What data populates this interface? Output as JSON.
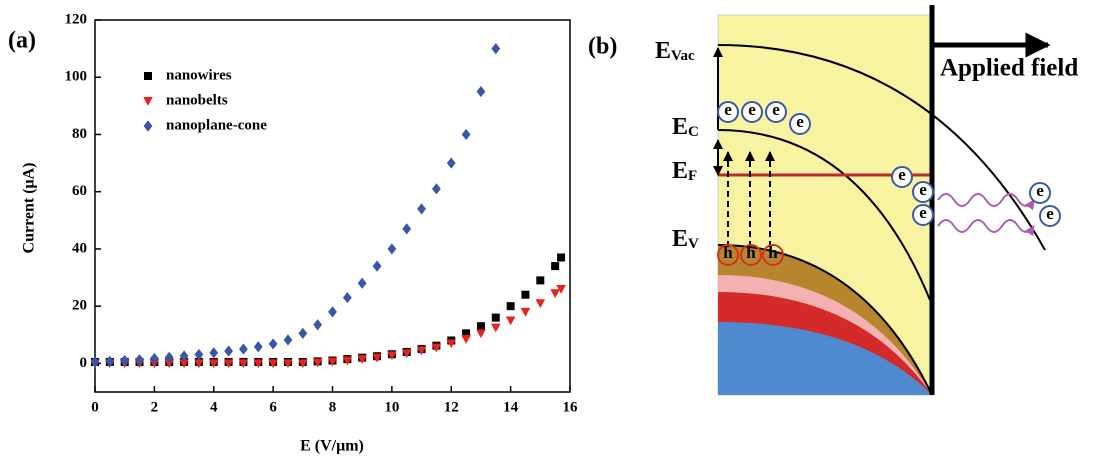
{
  "chart_data": {
    "type": "scatter",
    "panel_label": "(a)",
    "x_label": "E (V/μm)",
    "y_label": "Current (μA)",
    "xlim": [
      0,
      16
    ],
    "ylim": [
      -10,
      120
    ],
    "xticks": [
      0,
      2,
      4,
      6,
      8,
      10,
      12,
      14,
      16
    ],
    "yticks": [
      0,
      20,
      40,
      60,
      80,
      100,
      120
    ],
    "grid": false,
    "legend": "upper left",
    "series": [
      {
        "name": "nanowires",
        "color": "#000000",
        "marker": "square",
        "x": [
          0,
          0.5,
          1,
          1.5,
          2,
          2.5,
          3,
          3.5,
          4,
          4.5,
          5,
          5.5,
          6,
          6.5,
          7,
          7.5,
          8,
          8.5,
          9,
          9.5,
          10,
          10.5,
          11,
          11.5,
          12,
          12.5,
          13,
          13.5,
          14,
          14.5,
          15,
          15.5,
          15.7
        ],
        "values": [
          0.5,
          0.5,
          0.5,
          0.5,
          0.5,
          0.5,
          0.5,
          0.5,
          0.5,
          0.5,
          0.5,
          0.5,
          0.5,
          0.5,
          0.5,
          0.7,
          1,
          1.5,
          2,
          2.5,
          3.2,
          4,
          5,
          6.2,
          8,
          10.5,
          13,
          16,
          20,
          24,
          29,
          34,
          37
        ]
      },
      {
        "name": "nanobelts",
        "color": "#e8231f",
        "marker": "triangle-down",
        "x": [
          0,
          0.5,
          1,
          1.5,
          2,
          2.5,
          3,
          3.5,
          4,
          4.5,
          5,
          5.5,
          6,
          6.5,
          7,
          7.5,
          8,
          8.5,
          9,
          9.5,
          10,
          10.5,
          11,
          11.5,
          12,
          12.5,
          13,
          13.5,
          14,
          14.5,
          15,
          15.5,
          15.7
        ],
        "values": [
          0,
          0,
          0,
          0,
          0,
          0,
          0,
          0,
          0,
          0,
          0,
          0,
          0,
          0,
          0,
          0.3,
          0.6,
          1,
          1.5,
          2,
          2.8,
          3.5,
          4.5,
          5.5,
          7,
          8.5,
          10.5,
          12.5,
          15,
          18,
          21,
          24.5,
          26
        ]
      },
      {
        "name": "nanoplane-cone",
        "color": "#3856a8",
        "marker": "diamond",
        "x": [
          0,
          0.5,
          1,
          1.5,
          2,
          2.5,
          3,
          3.5,
          4,
          4.5,
          5,
          5.5,
          6,
          6.5,
          7,
          7.5,
          8,
          8.5,
          9,
          9.5,
          10,
          10.5,
          11,
          11.5,
          12,
          12.5,
          13,
          13.5
        ],
        "values": [
          0.5,
          0.7,
          1,
          1.3,
          1.7,
          2.1,
          2.6,
          3.1,
          3.7,
          4.3,
          5,
          5.8,
          6.8,
          8.2,
          10.5,
          13.5,
          18,
          23,
          28,
          34,
          40,
          47,
          54,
          61,
          70,
          80,
          95,
          110
        ]
      }
    ]
  },
  "diagram": {
    "panel_label": "(b)",
    "field_label": "Applied field",
    "levels": [
      {
        "main": "E",
        "sub": "Vac"
      },
      {
        "main": "E",
        "sub": "C"
      },
      {
        "main": "E",
        "sub": "F"
      },
      {
        "main": "E",
        "sub": "V"
      }
    ],
    "electrons": [
      "e",
      "e",
      "e",
      "e",
      "e",
      "e",
      "e",
      "e",
      "e"
    ],
    "holes": [
      "h",
      "h",
      "h"
    ]
  }
}
